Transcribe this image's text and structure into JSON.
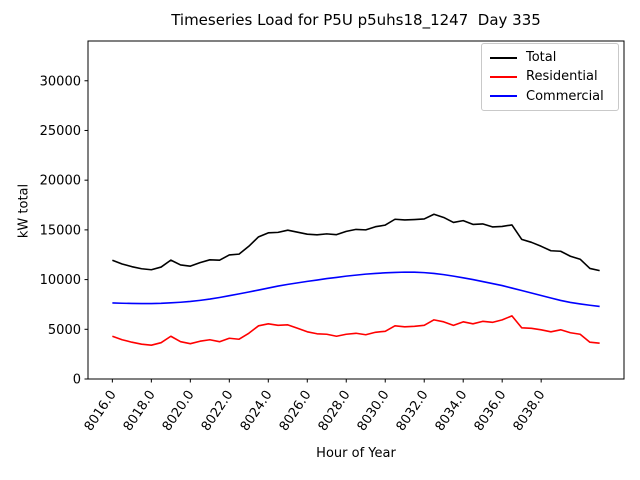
{
  "chart_data": {
    "type": "line",
    "title": "Timeseries Load for P5U p5uhs18_1247  Day 335",
    "xlabel": "Hour of Year",
    "ylabel": "kW total",
    "xlim": [
      8014.75,
      8042.25
    ],
    "ylim": [
      0,
      34000
    ],
    "grid": false,
    "background": "#ffffff",
    "x": [
      8016,
      8016.5,
      8017,
      8017.5,
      8018,
      8018.5,
      8019,
      8019.5,
      8020,
      8020.5,
      8021,
      8021.5,
      8022,
      8022.5,
      8023,
      8023.5,
      8024,
      8024.5,
      8025,
      8025.5,
      8026,
      8026.5,
      8027,
      8027.5,
      8028,
      8028.5,
      8029,
      8029.5,
      8030,
      8030.5,
      8031,
      8031.5,
      8032,
      8032.5,
      8033,
      8033.5,
      8034,
      8034.5,
      8035,
      8035.5,
      8036,
      8036.5,
      8037,
      8037.5,
      8038,
      8038.5,
      8039,
      8039.5,
      8040,
      8040.5,
      8041
    ],
    "series": [
      {
        "name": "Total",
        "color": "#000000",
        "values": [
          11950,
          11570,
          11300,
          11090,
          10990,
          11260,
          11960,
          11470,
          11350,
          11710,
          11990,
          11950,
          12480,
          12560,
          13350,
          14300,
          14700,
          14750,
          14970,
          14770,
          14570,
          14500,
          14600,
          14520,
          14850,
          15050,
          15000,
          15320,
          15480,
          16070,
          16000,
          16040,
          16100,
          16570,
          16250,
          15750,
          15930,
          15550,
          15600,
          15300,
          15350,
          15500,
          14050,
          13750,
          13350,
          12900,
          12850,
          12350,
          12050,
          11120,
          10900
        ]
      },
      {
        "name": "Residential",
        "color": "#ff0000",
        "values": [
          4300,
          3950,
          3700,
          3500,
          3400,
          3650,
          4300,
          3750,
          3550,
          3800,
          3950,
          3750,
          4100,
          4000,
          4600,
          5350,
          5550,
          5400,
          5450,
          5100,
          4750,
          4550,
          4500,
          4300,
          4500,
          4600,
          4450,
          4700,
          4800,
          5350,
          5250,
          5300,
          5400,
          5950,
          5750,
          5400,
          5750,
          5550,
          5800,
          5700,
          5950,
          6350,
          5150,
          5100,
          4950,
          4750,
          4950,
          4650,
          4500,
          3700,
          3600
        ]
      },
      {
        "name": "Commercial",
        "color": "#0000ff",
        "values": [
          7650,
          7620,
          7600,
          7590,
          7590,
          7610,
          7660,
          7720,
          7800,
          7910,
          8040,
          8200,
          8380,
          8560,
          8750,
          8950,
          9150,
          9350,
          9520,
          9670,
          9820,
          9950,
          10100,
          10220,
          10350,
          10450,
          10550,
          10620,
          10680,
          10720,
          10750,
          10740,
          10700,
          10620,
          10500,
          10350,
          10180,
          10000,
          9800,
          9600,
          9400,
          9150,
          8900,
          8650,
          8400,
          8150,
          7900,
          7700,
          7550,
          7420,
          7300
        ]
      }
    ],
    "xticks": {
      "values": [
        8016,
        8018,
        8020,
        8022,
        8024,
        8026,
        8028,
        8030,
        8032,
        8034,
        8036,
        8038
      ],
      "labels": [
        "8016.0",
        "8018.0",
        "8020.0",
        "8022.0",
        "8024.0",
        "8026.0",
        "8028.0",
        "8030.0",
        "8032.0",
        "8034.0",
        "8036.0",
        "8038.0"
      ],
      "rotation_deg": 56
    },
    "yticks": {
      "values": [
        0,
        5000,
        10000,
        15000,
        20000,
        25000,
        30000
      ],
      "labels": [
        "0",
        "5000",
        "10000",
        "15000",
        "20000",
        "25000",
        "30000"
      ]
    },
    "legend": {
      "position": "upper right",
      "entries": [
        "Total",
        "Residential",
        "Commercial"
      ]
    }
  }
}
